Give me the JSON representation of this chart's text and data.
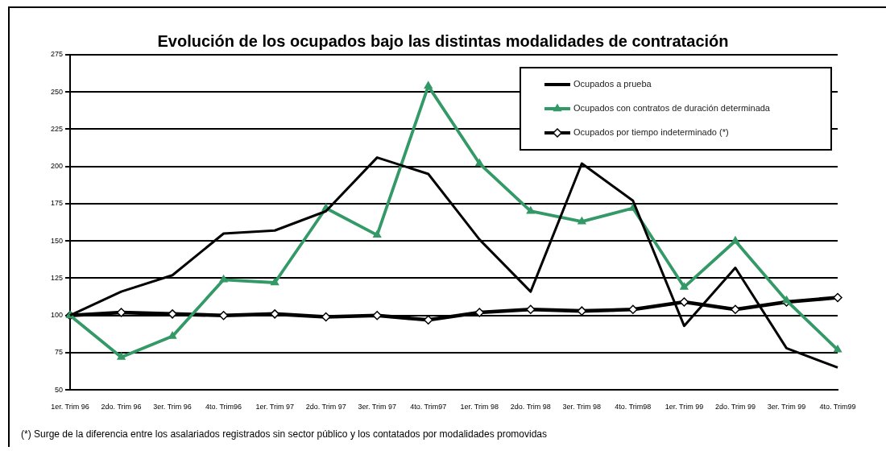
{
  "chart_data": {
    "type": "line",
    "title": "Evolución de los ocupados bajo las distintas modalidades de contratación",
    "categories": [
      "1er. Trim 96",
      "2do. Trim 96",
      "3er. Trim 96",
      "4to. Trim96",
      "1er. Trim 97",
      "2do. Trim 97",
      "3er. Trim 97",
      "4to. Trim97",
      "1er. Trim 98",
      "2do. Trim 98",
      "3er. Trim 98",
      "4to. Trim98",
      "1er. Trim 99",
      "2do. Trim 99",
      "3er. Trim 99",
      "4to. Trim99"
    ],
    "series": [
      {
        "name": "Ocupados a prueba",
        "color": "#000000",
        "marker": "none",
        "values": [
          100,
          116,
          127,
          155,
          157,
          170,
          206,
          195,
          151,
          116,
          202,
          177,
          93,
          132,
          78,
          65
        ]
      },
      {
        "name": "Ocupados con contratos de duración determinada",
        "color": "#339966",
        "marker": "triangle",
        "values": [
          100,
          72,
          86,
          124,
          122,
          172,
          154,
          254,
          202,
          170,
          163,
          172,
          119,
          150,
          110,
          77
        ]
      },
      {
        "name": "Ocupados por tiempo indeterminado (*)",
        "color": "#000000",
        "marker": "diamond",
        "values": [
          100,
          102,
          101,
          100,
          101,
          99,
          100,
          97,
          102,
          104,
          103,
          104,
          109,
          104,
          109,
          112
        ]
      }
    ],
    "ylim": [
      50,
      275
    ],
    "yticks": [
      50,
      75,
      100,
      125,
      150,
      175,
      200,
      225,
      250,
      275
    ],
    "grid": "y",
    "legend": "top right",
    "annotations": [
      "(*) Surge de la diferencia entre los asalariados registrados sin sector público y los contatados por modalidades promovidas"
    ]
  }
}
